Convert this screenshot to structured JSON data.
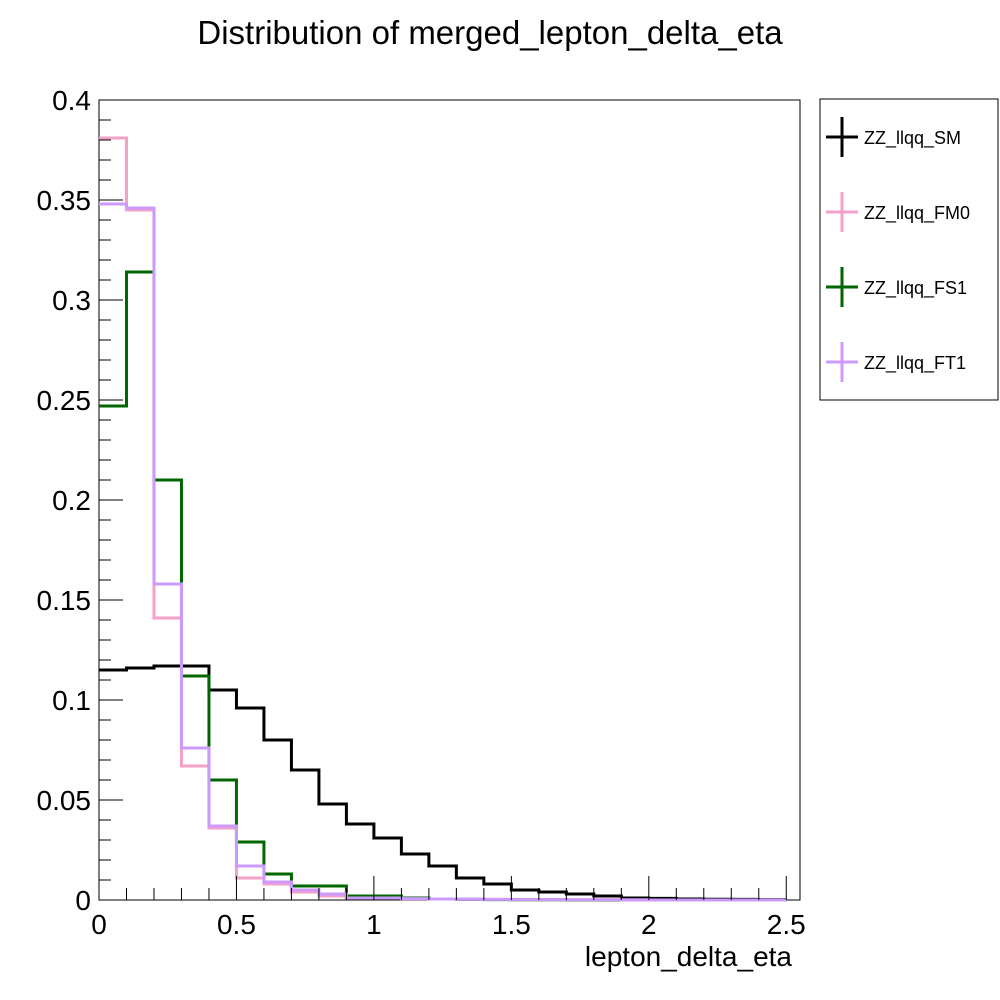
{
  "chart_data": {
    "type": "histogram",
    "title": "Distribution of merged_lepton_delta_eta",
    "xlabel": "lepton_delta_eta",
    "ylabel": "",
    "xlim": [
      0,
      2.55
    ],
    "ylim": [
      0,
      0.4
    ],
    "bin_width": 0.1,
    "x_ticks": [
      "0",
      "0.5",
      "1",
      "1.5",
      "2",
      "2.5"
    ],
    "y_ticks": [
      "0",
      "0.05",
      "0.1",
      "0.15",
      "0.2",
      "0.25",
      "0.3",
      "0.35",
      "0.4"
    ],
    "legend_position": "outside-right",
    "grid": false,
    "series": [
      {
        "name": "ZZ_llqq_SM",
        "color": "#000000",
        "values": [
          0.115,
          0.116,
          0.117,
          0.117,
          0.105,
          0.096,
          0.08,
          0.065,
          0.048,
          0.038,
          0.031,
          0.023,
          0.017,
          0.011,
          0.008,
          0.005,
          0.004,
          0.003,
          0.002,
          0.001,
          0.0008,
          0.0005,
          0.0004,
          0.0003,
          0.0002
        ]
      },
      {
        "name": "ZZ_llqq_FM0",
        "color": "#f4a0c8",
        "values": [
          0.381,
          0.345,
          0.141,
          0.067,
          0.036,
          0.011,
          0.008,
          0.004,
          0.002,
          0.001,
          0.001,
          0.0007,
          0.0005,
          0.0004,
          0.0003,
          0.0002,
          0.0002,
          0.0001,
          0.0001,
          0.0001,
          0.0,
          0.0,
          0.0,
          0.0,
          0.0
        ]
      },
      {
        "name": "ZZ_llqq_FS1",
        "color": "#006600",
        "values": [
          0.247,
          0.314,
          0.21,
          0.112,
          0.06,
          0.029,
          0.013,
          0.007,
          0.007,
          0.002,
          0.002,
          0.001,
          0.0005,
          0.0003,
          0.0002,
          0.0001,
          0.0001,
          0.0,
          0.0,
          0.0,
          0.0,
          0.0,
          0.0,
          0.0,
          0.0
        ]
      },
      {
        "name": "ZZ_llqq_FT1",
        "color": "#cc99ff",
        "values": [
          0.348,
          0.346,
          0.158,
          0.076,
          0.037,
          0.017,
          0.009,
          0.005,
          0.003,
          0.001,
          0.001,
          0.0007,
          0.0005,
          0.0004,
          0.0003,
          0.0002,
          0.0002,
          0.0001,
          0.0001,
          0.0,
          0.0,
          0.0,
          0.0,
          0.0,
          0.0
        ]
      }
    ]
  }
}
